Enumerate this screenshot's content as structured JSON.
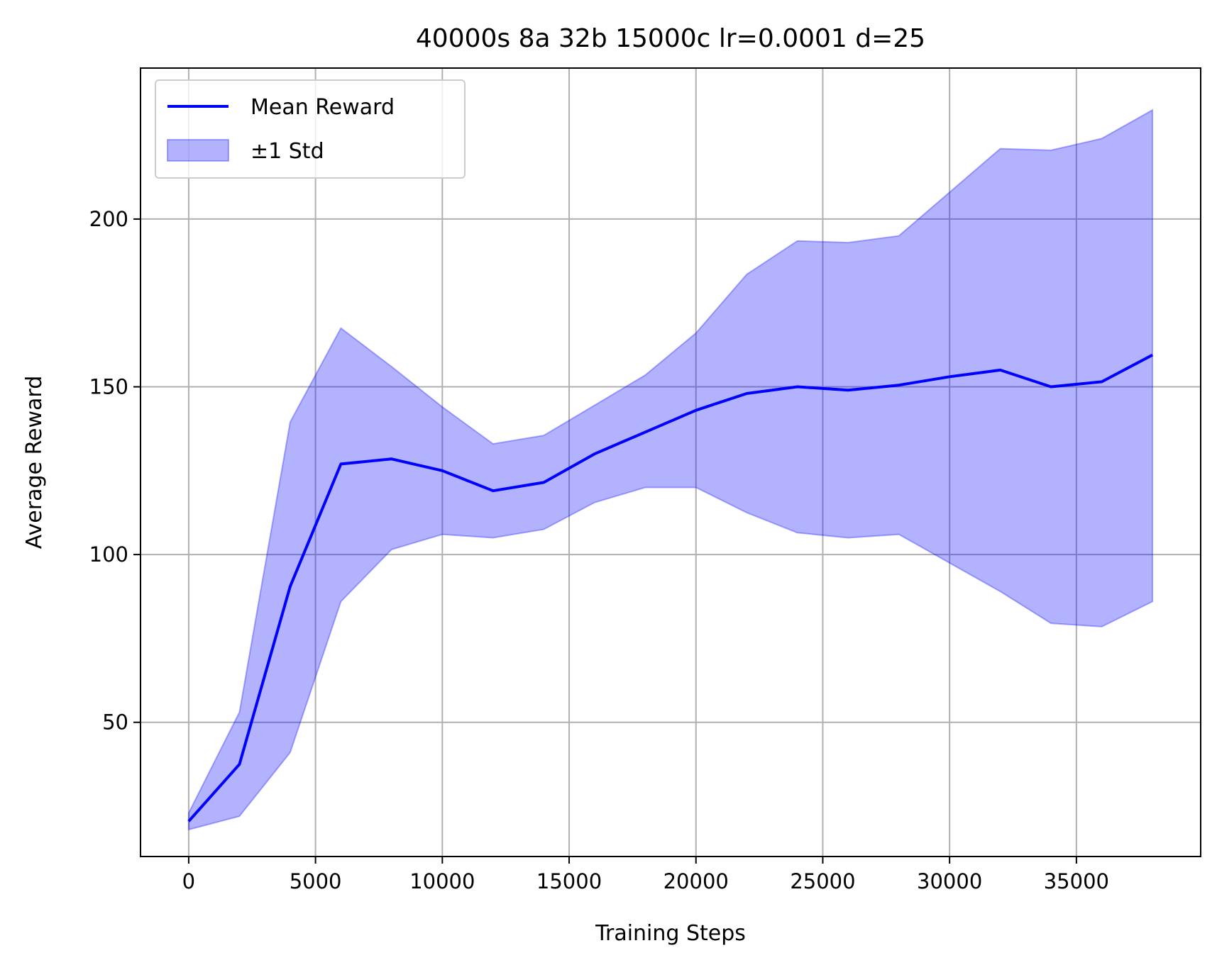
{
  "chart_data": {
    "type": "line",
    "title": "40000s 8a 32b 15000c lr=0.0001 d=25",
    "xlabel": "Training Steps",
    "ylabel": "Average Reward",
    "xlim": [
      -1900,
      39900
    ],
    "ylim": [
      10,
      245
    ],
    "xticks": [
      0,
      5000,
      10000,
      15000,
      20000,
      25000,
      30000,
      35000
    ],
    "xtick_labels": [
      "0",
      "5000",
      "10000",
      "15000",
      "20000",
      "25000",
      "30000",
      "35000"
    ],
    "yticks": [
      50,
      100,
      150,
      200
    ],
    "ytick_labels": [
      "50",
      "100",
      "150",
      "200"
    ],
    "grid": true,
    "legend_position": "top-left",
    "x": [
      0,
      2000,
      4000,
      6000,
      8000,
      10000,
      12000,
      14000,
      16000,
      18000,
      20000,
      22000,
      24000,
      26000,
      28000,
      30000,
      32000,
      34000,
      36000,
      38000
    ],
    "series": [
      {
        "name": "Mean Reward",
        "kind": "line",
        "color": "#0000ff",
        "values": [
          20.5,
          37.5,
          90.5,
          127,
          128.5,
          125,
          119,
          121.5,
          130,
          136.5,
          143,
          148,
          150,
          149,
          150.5,
          153,
          155,
          150,
          151.5,
          159.5
        ]
      },
      {
        "name": "±1 Std",
        "kind": "band",
        "color": "#0000ff",
        "upper": [
          23,
          53,
          139.5,
          167.5,
          156,
          144,
          133,
          135.5,
          144.5,
          153.5,
          166,
          183.5,
          193.5,
          193,
          195,
          208,
          221,
          220.5,
          224,
          232.5
        ],
        "lower": [
          18,
          22,
          41,
          86,
          101.5,
          106,
          105,
          107.5,
          115.5,
          120,
          120,
          112.5,
          106.5,
          105,
          106,
          97.5,
          89,
          79.5,
          78.5,
          86
        ]
      }
    ]
  }
}
